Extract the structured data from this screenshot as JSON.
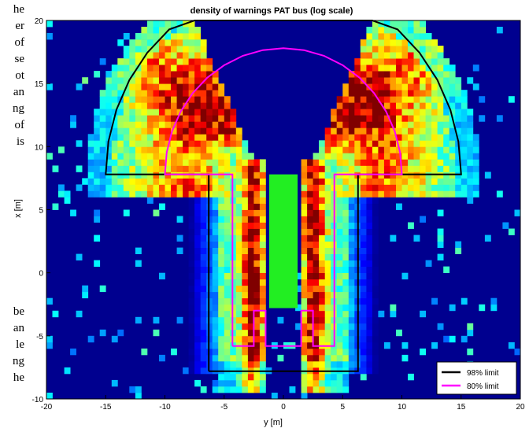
{
  "left_text_fragments": {
    "top": [
      "he",
      "er",
      "of",
      "se",
      "ot",
      "an",
      "ng",
      "of",
      "is"
    ],
    "bottom": [
      "be",
      "an",
      "le",
      "ng",
      "he"
    ]
  },
  "chart_data": {
    "type": "heatmap",
    "title": "density of warnings PAT bus (log scale)",
    "xlabel": "y [m]",
    "ylabel": "x [m]",
    "xlim": [
      -20,
      20
    ],
    "ylim": [
      -10,
      20
    ],
    "xticks": [
      -20,
      -15,
      -10,
      -5,
      0,
      5,
      10,
      15,
      20
    ],
    "yticks": [
      -10,
      -5,
      0,
      5,
      10,
      15,
      20
    ],
    "scale": "log",
    "colormap": "jet",
    "grid": false,
    "background_color": "#00008f",
    "bus_rectangle": {
      "x": [
        -1.2,
        1.2
      ],
      "y": [
        -2.8,
        7.8
      ],
      "color": "#22ee22"
    },
    "series": [
      {
        "name": "98% limit",
        "color": "#000000",
        "points": [
          [
            -6.3,
            -7.8
          ],
          [
            -6.3,
            7.8
          ],
          [
            -15,
            7.8
          ],
          [
            -14.77,
            10.4
          ],
          [
            -14.09,
            12.93
          ],
          [
            -12.99,
            15.3
          ],
          [
            -11.49,
            17.44
          ],
          [
            -9.64,
            19.29
          ],
          [
            -7.5,
            20
          ],
          [
            7.5,
            20
          ],
          [
            9.64,
            19.29
          ],
          [
            11.49,
            17.44
          ],
          [
            12.99,
            15.3
          ],
          [
            14.09,
            12.93
          ],
          [
            14.77,
            10.4
          ],
          [
            15,
            7.8
          ],
          [
            6.3,
            7.8
          ],
          [
            6.3,
            -7.8
          ],
          [
            -6.3,
            -7.8
          ]
        ]
      },
      {
        "name": "80% limit",
        "color": "#ff00ff",
        "points": [
          [
            -4.3,
            -5.8
          ],
          [
            -4.3,
            7.8
          ],
          [
            -10,
            7.8
          ],
          [
            -9.85,
            9.54
          ],
          [
            -9.4,
            11.22
          ],
          [
            -8.66,
            12.8
          ],
          [
            -7.66,
            14.23
          ],
          [
            -6.43,
            15.46
          ],
          [
            -5,
            16.46
          ],
          [
            -3.42,
            17.2
          ],
          [
            -1.74,
            17.65
          ],
          [
            0,
            17.8
          ],
          [
            1.74,
            17.65
          ],
          [
            3.42,
            17.2
          ],
          [
            5,
            16.46
          ],
          [
            6.43,
            15.46
          ],
          [
            7.66,
            14.23
          ],
          [
            8.66,
            12.8
          ],
          [
            9.4,
            11.22
          ],
          [
            9.85,
            9.54
          ],
          [
            10,
            7.8
          ],
          [
            4.3,
            7.8
          ],
          [
            4.3,
            -5.8
          ],
          [
            2.5,
            -5.8
          ],
          [
            2.5,
            -3.0
          ],
          [
            1.5,
            -3.0
          ],
          [
            1.5,
            -5.8
          ],
          [
            -1.5,
            -5.8
          ],
          [
            -1.5,
            -3.0
          ],
          [
            -2.5,
            -3.0
          ],
          [
            -2.5,
            -5.8
          ],
          [
            -4.3,
            -5.8
          ]
        ]
      }
    ],
    "legend": {
      "placement": "bottom-right",
      "entries": [
        "98% limit",
        "80% limit"
      ]
    }
  }
}
